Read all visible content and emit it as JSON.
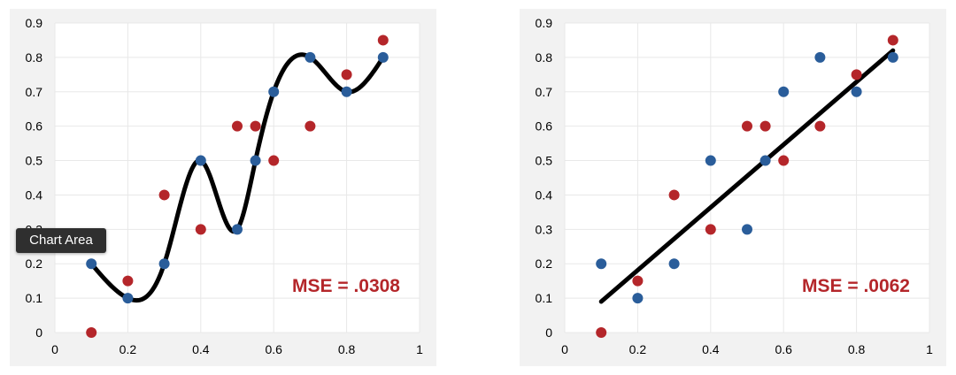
{
  "colors": {
    "series_a": "#2a5d9a",
    "series_b": "#b4262a",
    "fit_line": "#000000",
    "annotation": "#b4262a"
  },
  "tooltip": {
    "label": "Chart Area"
  },
  "chart_data": [
    {
      "type": "scatter",
      "title": "",
      "xlabel": "",
      "ylabel": "",
      "xlim": [
        0,
        1
      ],
      "ylim": [
        0,
        0.9
      ],
      "x_ticks": [
        "0",
        "0.2",
        "0.4",
        "0.6",
        "0.8",
        "1"
      ],
      "y_ticks": [
        "0",
        "0.1",
        "0.2",
        "0.3",
        "0.4",
        "0.5",
        "0.6",
        "0.7",
        "0.8",
        "0.9"
      ],
      "grid": true,
      "series": [
        {
          "points": [
            [
              0.1,
              0.2
            ],
            [
              0.2,
              0.1
            ],
            [
              0.3,
              0.2
            ],
            [
              0.4,
              0.5
            ],
            [
              0.5,
              0.3
            ],
            [
              0.55,
              0.5
            ],
            [
              0.6,
              0.7
            ],
            [
              0.7,
              0.8
            ],
            [
              0.8,
              0.7
            ],
            [
              0.9,
              0.8
            ]
          ]
        },
        {
          "points": [
            [
              0.1,
              0.0
            ],
            [
              0.2,
              0.15
            ],
            [
              0.3,
              0.4
            ],
            [
              0.4,
              0.3
            ],
            [
              0.5,
              0.6
            ],
            [
              0.55,
              0.6
            ],
            [
              0.6,
              0.5
            ],
            [
              0.7,
              0.6
            ],
            [
              0.8,
              0.75
            ],
            [
              0.9,
              0.85
            ]
          ]
        }
      ],
      "fit": {
        "kind": "high-degree polynomial",
        "points": [
          [
            0.1,
            0.2
          ],
          [
            0.2,
            0.1
          ],
          [
            0.3,
            0.2
          ],
          [
            0.4,
            0.5
          ],
          [
            0.5,
            0.3
          ],
          [
            0.55,
            0.5
          ],
          [
            0.6,
            0.7
          ],
          [
            0.7,
            0.8
          ],
          [
            0.8,
            0.7
          ],
          [
            0.9,
            0.8
          ]
        ]
      },
      "annotation": "MSE = .0308"
    },
    {
      "type": "scatter",
      "title": "",
      "xlabel": "",
      "ylabel": "",
      "xlim": [
        0,
        1
      ],
      "ylim": [
        0,
        0.9
      ],
      "x_ticks": [
        "0",
        "0.2",
        "0.4",
        "0.6",
        "0.8",
        "1"
      ],
      "y_ticks": [
        "0",
        "0.1",
        "0.2",
        "0.3",
        "0.4",
        "0.5",
        "0.6",
        "0.7",
        "0.8",
        "0.9"
      ],
      "grid": true,
      "series": [
        {
          "points": [
            [
              0.1,
              0.2
            ],
            [
              0.2,
              0.1
            ],
            [
              0.3,
              0.2
            ],
            [
              0.4,
              0.5
            ],
            [
              0.5,
              0.3
            ],
            [
              0.55,
              0.5
            ],
            [
              0.6,
              0.7
            ],
            [
              0.7,
              0.8
            ],
            [
              0.8,
              0.7
            ],
            [
              0.9,
              0.8
            ]
          ]
        },
        {
          "points": [
            [
              0.1,
              0.0
            ],
            [
              0.2,
              0.15
            ],
            [
              0.3,
              0.4
            ],
            [
              0.4,
              0.3
            ],
            [
              0.5,
              0.6
            ],
            [
              0.55,
              0.6
            ],
            [
              0.6,
              0.5
            ],
            [
              0.7,
              0.6
            ],
            [
              0.8,
              0.75
            ],
            [
              0.9,
              0.85
            ]
          ]
        }
      ],
      "fit": {
        "kind": "linear",
        "points": [
          [
            0.1,
            0.09
          ],
          [
            0.9,
            0.82
          ]
        ]
      },
      "annotation": "MSE = .0062"
    }
  ]
}
